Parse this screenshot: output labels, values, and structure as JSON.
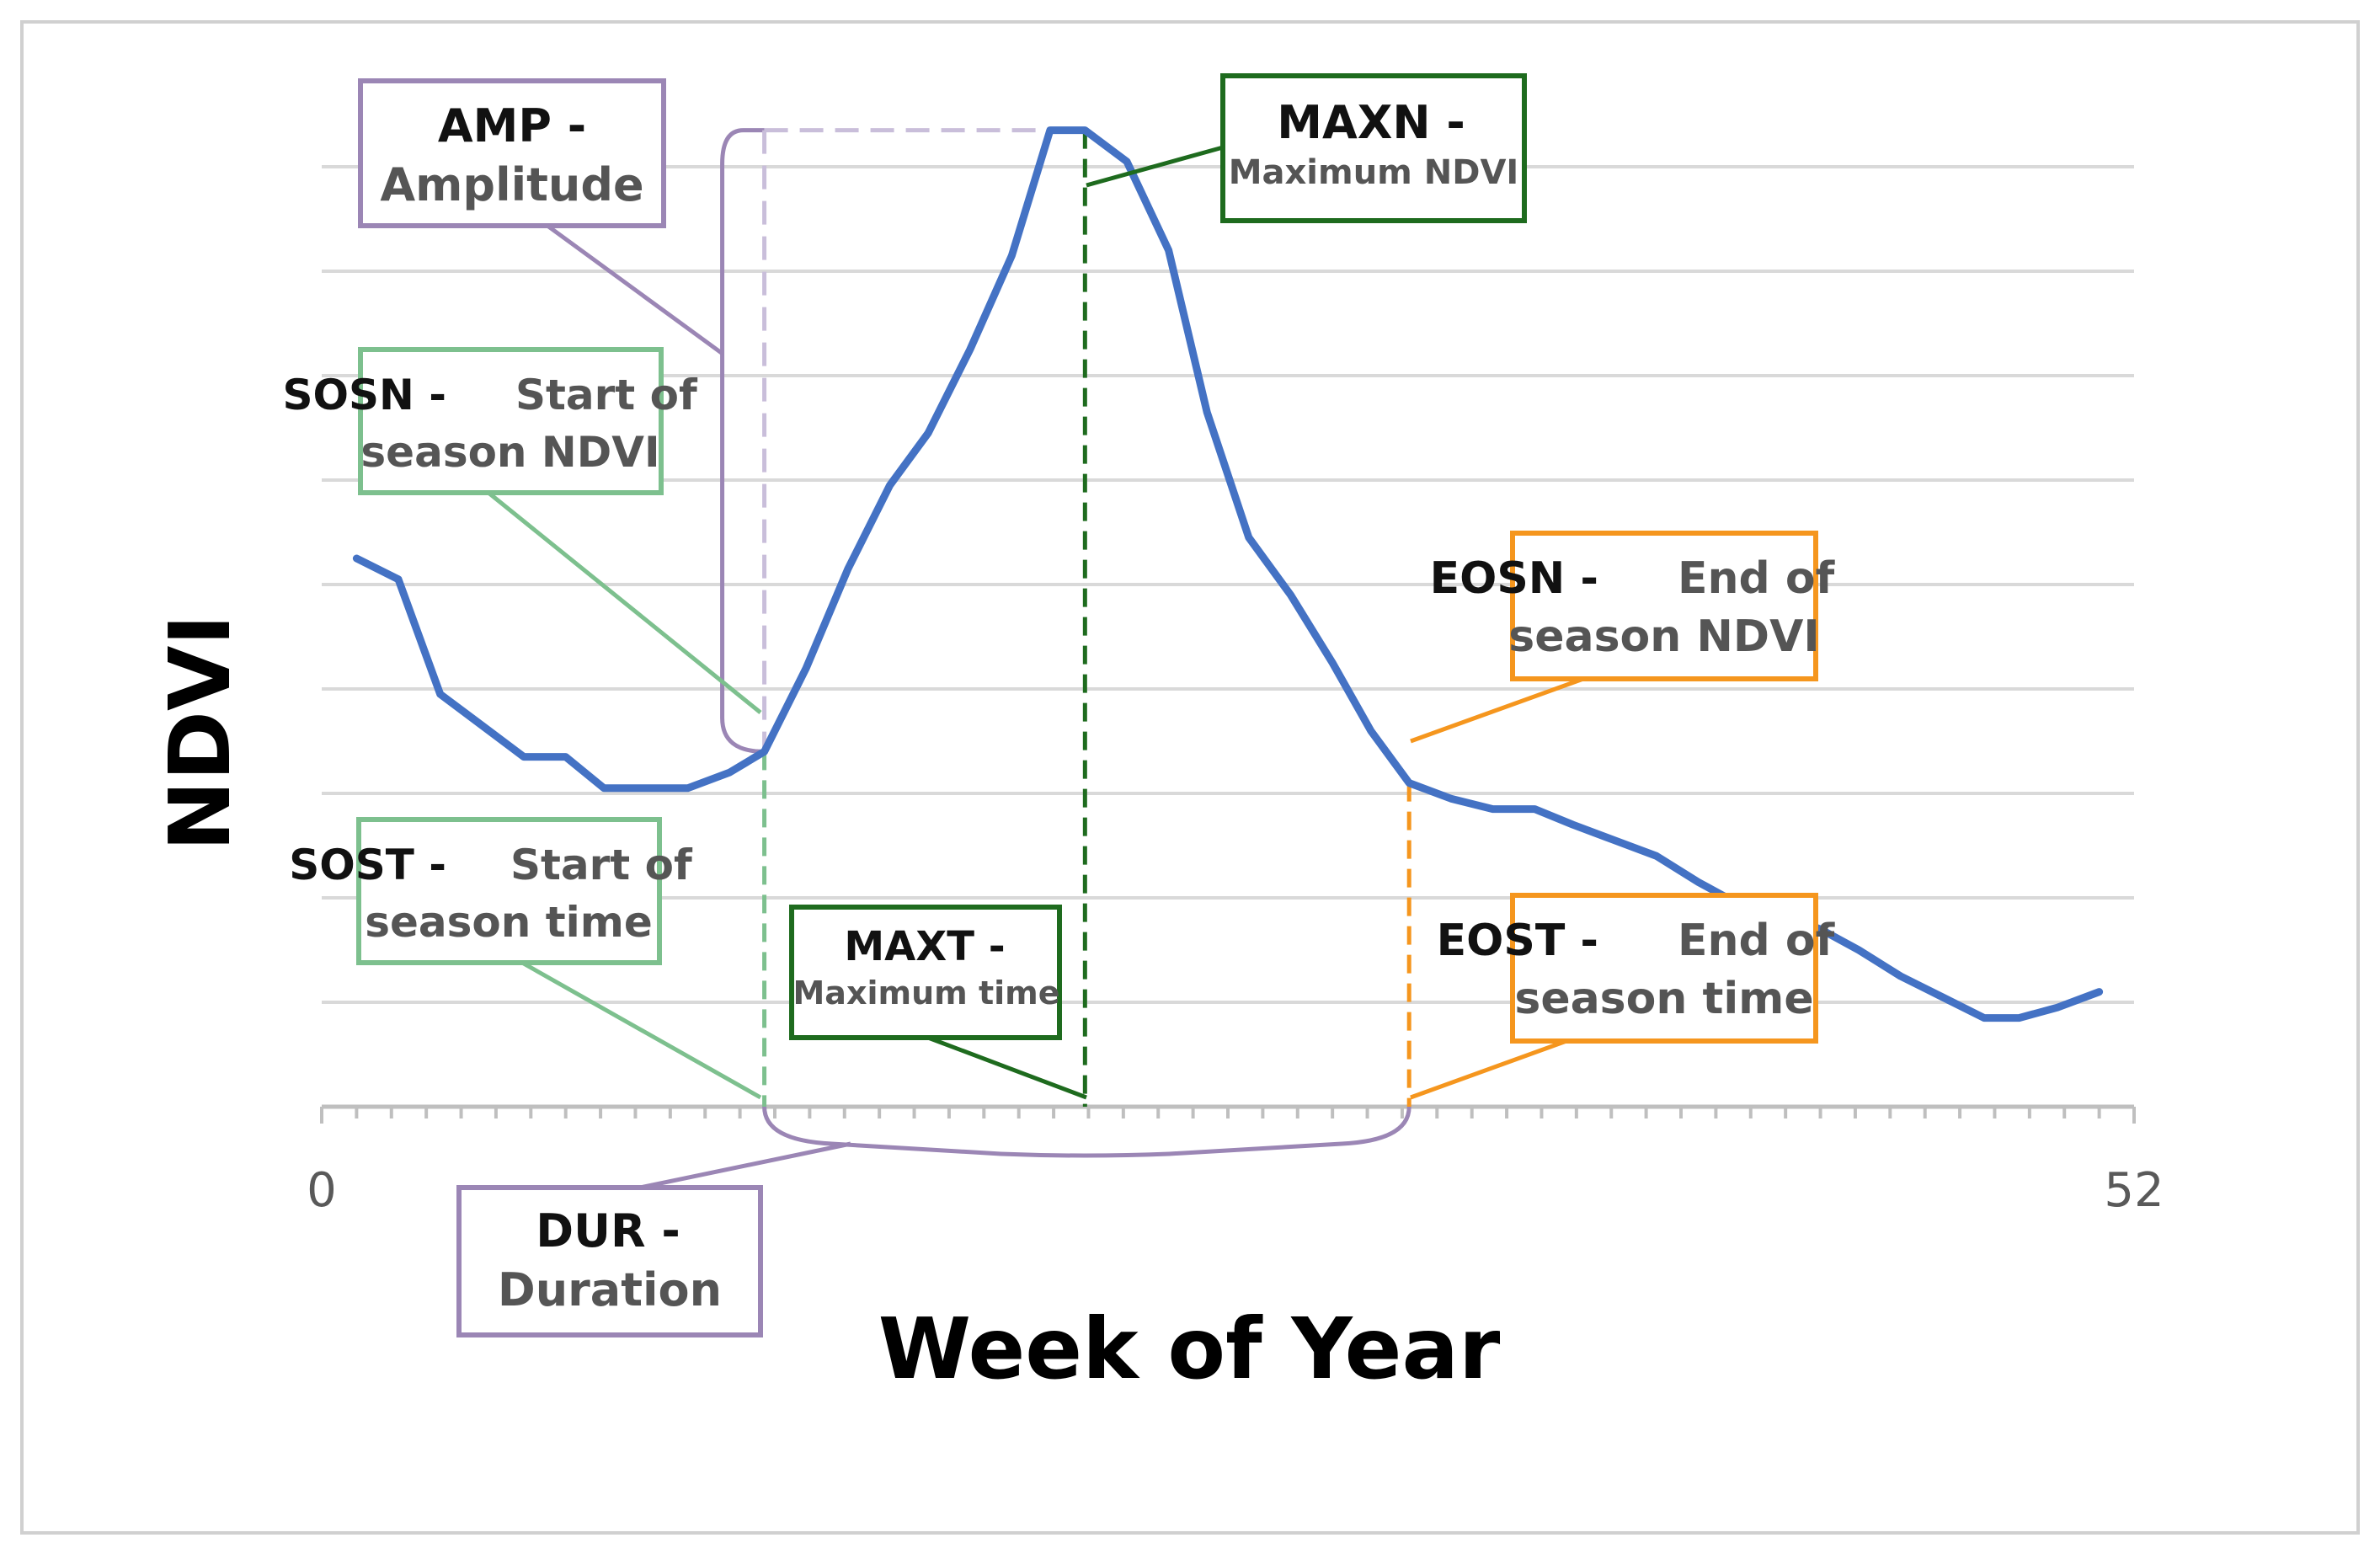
{
  "chart_data": {
    "type": "line",
    "xlabel": "Week of Year",
    "ylabel": "NDVI",
    "x_ticks_labeled": [
      "0",
      "52"
    ],
    "xlim": [
      0,
      52
    ],
    "ylim": [
      0,
      9
    ],
    "grid": true,
    "legend": "none",
    "colors": {
      "line": "#4472C4",
      "amplitude": "#9B86B5",
      "start": "#7DC08E",
      "maximum": "#1E6B1E",
      "end": "#F5961E",
      "grid": "#D9D9D9",
      "axis": "#BFBFBF"
    },
    "series": [
      {
        "values": [
          {
            "x": 1,
            "y": 5.25
          },
          {
            "x": 2.2,
            "y": 5.05
          },
          {
            "x": 3.4,
            "y": 3.95
          },
          {
            "x": 4.6,
            "y": 3.65
          },
          {
            "x": 5.8,
            "y": 3.35
          },
          {
            "x": 7,
            "y": 3.35
          },
          {
            "x": 8.1,
            "y": 3.05
          },
          {
            "x": 9.3,
            "y": 3.05
          },
          {
            "x": 10.5,
            "y": 3.05
          },
          {
            "x": 11.7,
            "y": 3.2
          },
          {
            "x": 12.7,
            "y": 3.4
          },
          {
            "x": 13.9,
            "y": 4.2
          },
          {
            "x": 15.1,
            "y": 5.15
          },
          {
            "x": 16.3,
            "y": 5.95
          },
          {
            "x": 17.4,
            "y": 6.45
          },
          {
            "x": 18.6,
            "y": 7.25
          },
          {
            "x": 19.8,
            "y": 8.15
          },
          {
            "x": 20.9,
            "y": 9.35
          },
          {
            "x": 21.9,
            "y": 9.35
          },
          {
            "x": 23.1,
            "y": 9.05
          },
          {
            "x": 24.3,
            "y": 8.2
          },
          {
            "x": 25.4,
            "y": 6.65
          },
          {
            "x": 26.6,
            "y": 5.45
          },
          {
            "x": 27.8,
            "y": 4.9
          },
          {
            "x": 29,
            "y": 4.25
          },
          {
            "x": 30.1,
            "y": 3.6
          },
          {
            "x": 31.2,
            "y": 3.1
          },
          {
            "x": 32.4,
            "y": 2.95
          },
          {
            "x": 33.6,
            "y": 2.85
          },
          {
            "x": 34.8,
            "y": 2.85
          },
          {
            "x": 35.9,
            "y": 2.7
          },
          {
            "x": 37.1,
            "y": 2.55
          },
          {
            "x": 38.3,
            "y": 2.4
          },
          {
            "x": 39.5,
            "y": 2.15
          },
          {
            "x": 40.6,
            "y": 1.95
          },
          {
            "x": 41.8,
            "y": 1.85
          },
          {
            "x": 43,
            "y": 1.7
          },
          {
            "x": 44.1,
            "y": 1.5
          },
          {
            "x": 45.3,
            "y": 1.25
          },
          {
            "x": 46.5,
            "y": 1.05
          },
          {
            "x": 47.7,
            "y": 0.85
          },
          {
            "x": 48.7,
            "y": 0.85
          },
          {
            "x": 49.8,
            "y": 0.95
          },
          {
            "x": 51,
            "y": 1.1
          }
        ]
      }
    ],
    "metrics": {
      "sos_week": 12.7,
      "max_week": 21.9,
      "eos_week": 31.2,
      "sos_ndvi": 3.4,
      "max_ndvi": 9.35,
      "eos_ndvi": 3.1
    },
    "annotations": [
      {
        "id": "amp",
        "title": "AMP -",
        "subtitle": "Amplitude"
      },
      {
        "id": "sosn",
        "title": "SOSN -",
        "subtitle": "Start of",
        "subtitle2": "season NDVI"
      },
      {
        "id": "sost",
        "title": "SOST -",
        "subtitle": "Start of",
        "subtitle2": "season time"
      },
      {
        "id": "maxn",
        "title": "MAXN -",
        "subtitle": "Maximum NDVI"
      },
      {
        "id": "maxt",
        "title": "MAXT -",
        "subtitle": "Maximum time"
      },
      {
        "id": "eosn",
        "title": "EOSN -",
        "subtitle": "End of",
        "subtitle2": "season NDVI"
      },
      {
        "id": "eost",
        "title": "EOST -",
        "subtitle": "End of",
        "subtitle2": "season time"
      },
      {
        "id": "dur",
        "title": "DUR -",
        "subtitle": "Duration"
      }
    ]
  }
}
